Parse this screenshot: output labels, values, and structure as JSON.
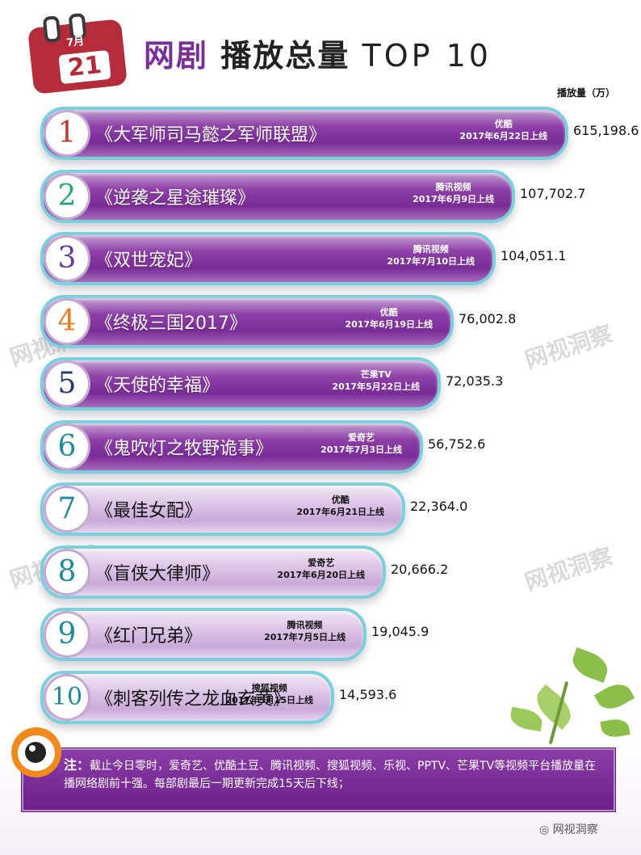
{
  "header": {
    "calendar_month": "7月",
    "calendar_day": "21",
    "title_part1": "网剧",
    "title_part2": "播放总量",
    "title_part3": "TOP 10",
    "unit_label": "播放量（万）"
  },
  "watermark": "网视洞察",
  "chart_data": {
    "type": "bar",
    "orientation": "horizontal",
    "title": "网剧播放总量 TOP 10",
    "value_unit": "播放量（万）",
    "rows": [
      {
        "rank": "1",
        "name": "《大军师司马懿之军师联盟》",
        "platform": "优酷",
        "release": "2017年6月22日上线",
        "value": 615198.6,
        "value_label": "615,198.6",
        "rank_color": "#c0392b"
      },
      {
        "rank": "2",
        "name": "《逆袭之星途璀璨》",
        "platform": "腾讯视频",
        "release": "2017年6月9日上线",
        "value": 107702.7,
        "value_label": "107,702.7",
        "rank_color": "#27a37a"
      },
      {
        "rank": "3",
        "name": "《双世宠妃》",
        "platform": "腾讯视频",
        "release": "2017年7月10日上线",
        "value": 104051.1,
        "value_label": "104,051.1",
        "rank_color": "#6a3a9a"
      },
      {
        "rank": "4",
        "name": "《终极三国2017》",
        "platform": "优酷",
        "release": "2017年6月19日上线",
        "value": 76002.8,
        "value_label": "76,002.8",
        "rank_color": "#e67e22"
      },
      {
        "rank": "5",
        "name": "《天使的幸福》",
        "platform": "芒果TV",
        "release": "2017年5月22日上线",
        "value": 72035.3,
        "value_label": "72,035.3",
        "rank_color": "#1f3a6b"
      },
      {
        "rank": "6",
        "name": "《鬼吹灯之牧野诡事》",
        "platform": "爱奇艺",
        "release": "2017年7月3日上线",
        "value": 56752.6,
        "value_label": "56,752.6",
        "rank_color": "#1f8a9a"
      },
      {
        "rank": "7",
        "name": "《最佳女配》",
        "platform": "优酷",
        "release": "2017年6月21日上线",
        "value": 22364.0,
        "value_label": "22,364.0",
        "rank_color": "#1f8a9a"
      },
      {
        "rank": "8",
        "name": "《盲侠大律师》",
        "platform": "爱奇艺",
        "release": "2017年6月20日上线",
        "value": 20666.2,
        "value_label": "20,666.2",
        "rank_color": "#1f8a9a"
      },
      {
        "rank": "9",
        "name": "《红门兄弟》",
        "platform": "腾讯视频",
        "release": "2017年7月5日上线",
        "value": 19045.9,
        "value_label": "19,045.9",
        "rank_color": "#1f8a9a"
      },
      {
        "rank": "10",
        "name": "《刺客列传之龙血玄黄》",
        "platform": "搜狐视频",
        "release": "2017年5月15日上线",
        "value": 14593.6,
        "value_label": "14,593.6",
        "rank_color": "#1f8a9a"
      }
    ]
  },
  "note": {
    "label": "注：",
    "text": "截止今日零时，爱奇艺、优酷土豆、腾讯视频、搜狐视频、乐视、PPTV、芒果TV等视频平台播放量在播网络剧前十强。每部剧最后一期更新完成15天后下线；"
  },
  "footer": {
    "brand": "网视洞察"
  }
}
